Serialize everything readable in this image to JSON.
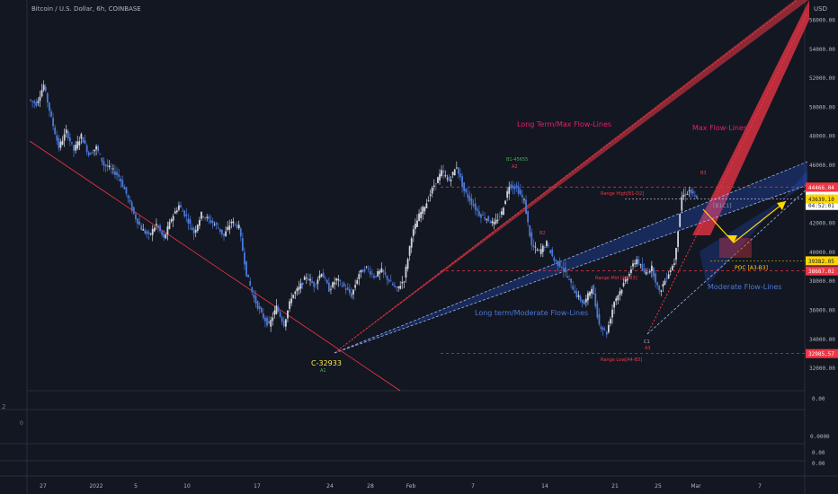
{
  "header": {
    "title": "Bitcoin / U.S. Dollar, 6h, COINBASE",
    "currency": "USD"
  },
  "chart_data": {
    "type": "candlestick",
    "ylim": [
      31000,
      57500
    ],
    "y_ticks": [
      32000,
      34000,
      36000,
      38000,
      40000,
      42000,
      44000,
      46000,
      48000,
      50000,
      52000,
      54000,
      56000
    ],
    "y_tick_labels": [
      "32000.00",
      "34000.00",
      "36000.00",
      "38000.00",
      "40000.00",
      "42000.00",
      "44000.00",
      "46000.00",
      "48000.00",
      "50000.00",
      "52000.00",
      "54000.00",
      "56000.00"
    ],
    "x_tick_labels": [
      "27",
      "2022",
      "5",
      "10",
      "17",
      "24",
      "28",
      "Feb",
      "7",
      "14",
      "21",
      "25",
      "Mar",
      "7"
    ],
    "price_trace": [
      50500,
      50200,
      51500,
      49200,
      47200,
      48300,
      47000,
      48000,
      46700,
      47200,
      46000,
      45700,
      45200,
      44000,
      42600,
      41600,
      41100,
      41900,
      40900,
      42300,
      43200,
      42400,
      41300,
      42600,
      42200,
      41800,
      41100,
      42100,
      41700,
      38500,
      36800,
      35700,
      34900,
      36200,
      35000,
      36900,
      37500,
      38300,
      37700,
      38600,
      37400,
      38100,
      37600,
      37000,
      38500,
      38900,
      38300,
      38700,
      38000,
      37400,
      38100,
      41100,
      42500,
      43400,
      44600,
      45500,
      44900,
      45900,
      44200,
      43400,
      42600,
      42300,
      41900,
      42700,
      44600,
      44400,
      43500,
      40400,
      40000,
      40600,
      39400,
      39000,
      38000,
      37000,
      36400,
      37600,
      35000,
      34400,
      36600,
      37500,
      38600,
      39500,
      38500,
      38900,
      37200,
      38300,
      39300,
      43800,
      44200,
      43600
    ],
    "price_labels": [
      {
        "value": 44466.04,
        "text": "44466.04",
        "color": "#f23645",
        "text_color": "#ffffff"
      },
      {
        "value": 43839.89,
        "text": "43839.89",
        "color": "#ffffff",
        "text_color": "#131722"
      },
      {
        "value": 43200,
        "text": "04:52:01",
        "color": "#ffffff",
        "text_color": "#131722"
      },
      {
        "value": 43639.1,
        "text": "43639.10",
        "color": "#ffd600",
        "text_color": "#131722"
      },
      {
        "value": 39382.05,
        "text": "39382.05",
        "color": "#ffd600",
        "text_color": "#131722"
      },
      {
        "value": 38687.02,
        "text": "38687.02",
        "color": "#f23645",
        "text_color": "#ffffff"
      },
      {
        "value": 32985.57,
        "text": "32985.57",
        "color": "#f23645",
        "text_color": "#ffffff"
      }
    ],
    "annotations": [
      {
        "text": "Long Term/Max Flow-Lines",
        "color": "#e91e63"
      },
      {
        "text": "Max Flow-Lines",
        "color": "#e91e63"
      },
      {
        "text": "Long term/Moderate Flow-Lines",
        "color": "#4b78d8"
      },
      {
        "text": "Moderate Flow-Lines",
        "color": "#4b78d8"
      },
      {
        "text": "C-32933",
        "color": "#ffeb3b"
      },
      {
        "text": "A1",
        "color": "#4caf50"
      },
      {
        "text": "B1-45655",
        "color": "#4caf50"
      },
      {
        "text": "A2",
        "color": "#f23645"
      },
      {
        "text": "B2",
        "color": "#f23645"
      },
      {
        "text": "C1",
        "color": "#b2b5be"
      },
      {
        "text": "A3",
        "color": "#f23645"
      },
      {
        "text": "B3",
        "color": "#f23645"
      },
      {
        "text": "Range High[B1-D2]",
        "color": "#f23645"
      },
      {
        "text": "Range Mid [A4-B3]",
        "color": "#f23645"
      },
      {
        "text": "Range Low[A4-B3]",
        "color": "#f23645"
      },
      {
        "text": "POC [A3-B3]",
        "color": "#ffd600"
      },
      {
        "text": "[B1C1]",
        "color": "#9598a1"
      }
    ],
    "sub_panes": [
      "0.00",
      "0.0000",
      "0.00",
      "0.00"
    ],
    "left_marks": [
      "2",
      "0"
    ]
  },
  "colors": {
    "background": "#131722",
    "candle_up": "#d1d4dc",
    "candle_down": "#4b78d8",
    "grid": "#2a2e39",
    "max_flow": "#f23645",
    "moderate_flow": "#2962ff",
    "trend_line": "#f23645",
    "yellow": "#ffd600"
  }
}
